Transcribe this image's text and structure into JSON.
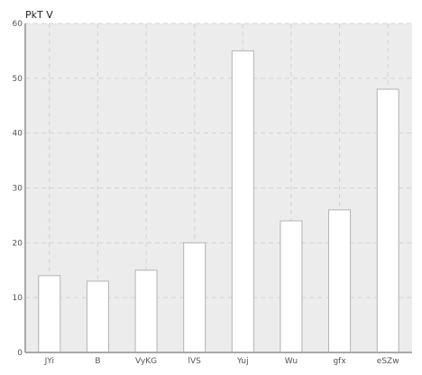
{
  "chart_data": {
    "type": "bar",
    "ylabel": "PkT V",
    "categories": [
      "JYi",
      "B",
      "VyKG",
      "lVS",
      "Yuj",
      "Wu",
      "gfx",
      "eSZw"
    ],
    "values": [
      14,
      13,
      15,
      20,
      55,
      24,
      26,
      48
    ],
    "ylim": [
      0,
      60
    ],
    "yticks": [
      0,
      10,
      20,
      30,
      40,
      50,
      60
    ],
    "grid": true,
    "colors": {
      "plot_background": "#ececec",
      "bar_fill": "#ffffff",
      "bar_stroke": "#b3b3b3",
      "grid": "#d3d3d3",
      "axis": "#a8a8a8"
    }
  }
}
